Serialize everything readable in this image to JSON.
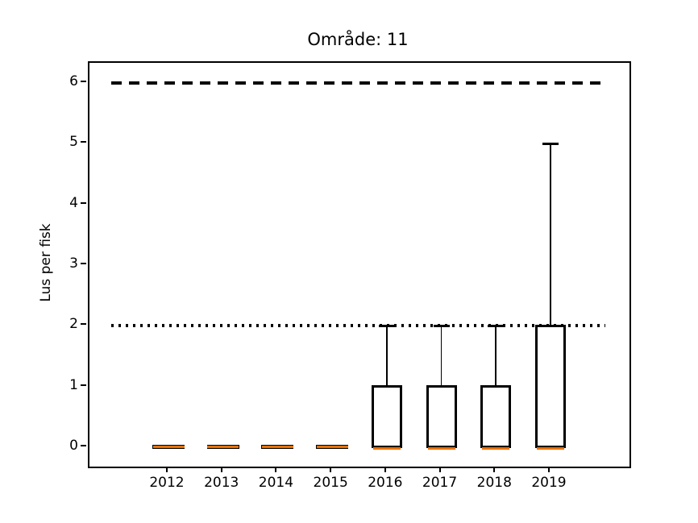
{
  "chart_data": {
    "type": "boxplot",
    "title": "Område: 11",
    "xlabel": "",
    "ylabel": "Lus per fisk",
    "categories": [
      "2012",
      "2013",
      "2014",
      "2015",
      "2016",
      "2017",
      "2018",
      "2019"
    ],
    "boxes": [
      {
        "year": "2012",
        "whislo": 0,
        "q1": 0,
        "med": 0,
        "q3": 0,
        "whishi": 0
      },
      {
        "year": "2013",
        "whislo": 0,
        "q1": 0,
        "med": 0,
        "q3": 0,
        "whishi": 0
      },
      {
        "year": "2014",
        "whislo": 0,
        "q1": 0,
        "med": 0,
        "q3": 0,
        "whishi": 0
      },
      {
        "year": "2015",
        "whislo": 0,
        "q1": 0,
        "med": 0,
        "q3": 0,
        "whishi": 0
      },
      {
        "year": "2016",
        "whislo": 0,
        "q1": 0,
        "med": 0,
        "q3": 1,
        "whishi": 2
      },
      {
        "year": "2017",
        "whislo": 0,
        "q1": 0,
        "med": 0,
        "q3": 1,
        "whishi": 2
      },
      {
        "year": "2018",
        "whislo": 0,
        "q1": 0,
        "med": 0,
        "q3": 1,
        "whishi": 2
      },
      {
        "year": "2019",
        "whislo": 0,
        "q1": 0,
        "med": 0,
        "q3": 2,
        "whishi": 5
      }
    ],
    "reference_lines": [
      {
        "y": 6,
        "style": "dashed",
        "color": "#000000",
        "name": "dashed-limit-line"
      },
      {
        "y": 2,
        "style": "dotted",
        "color": "#000000",
        "name": "dotted-limit-line"
      }
    ],
    "yticks": [
      "0",
      "1",
      "2",
      "3",
      "4",
      "5",
      "6"
    ],
    "ytick_values": [
      0,
      1,
      2,
      3,
      4,
      5,
      6
    ],
    "ylim": [
      -0.32,
      6.33
    ],
    "grid": false,
    "legend": null,
    "colors": {
      "box_edge": "#000000",
      "median": "#e8710a",
      "background": "#ffffff",
      "axes": "#000000"
    }
  }
}
